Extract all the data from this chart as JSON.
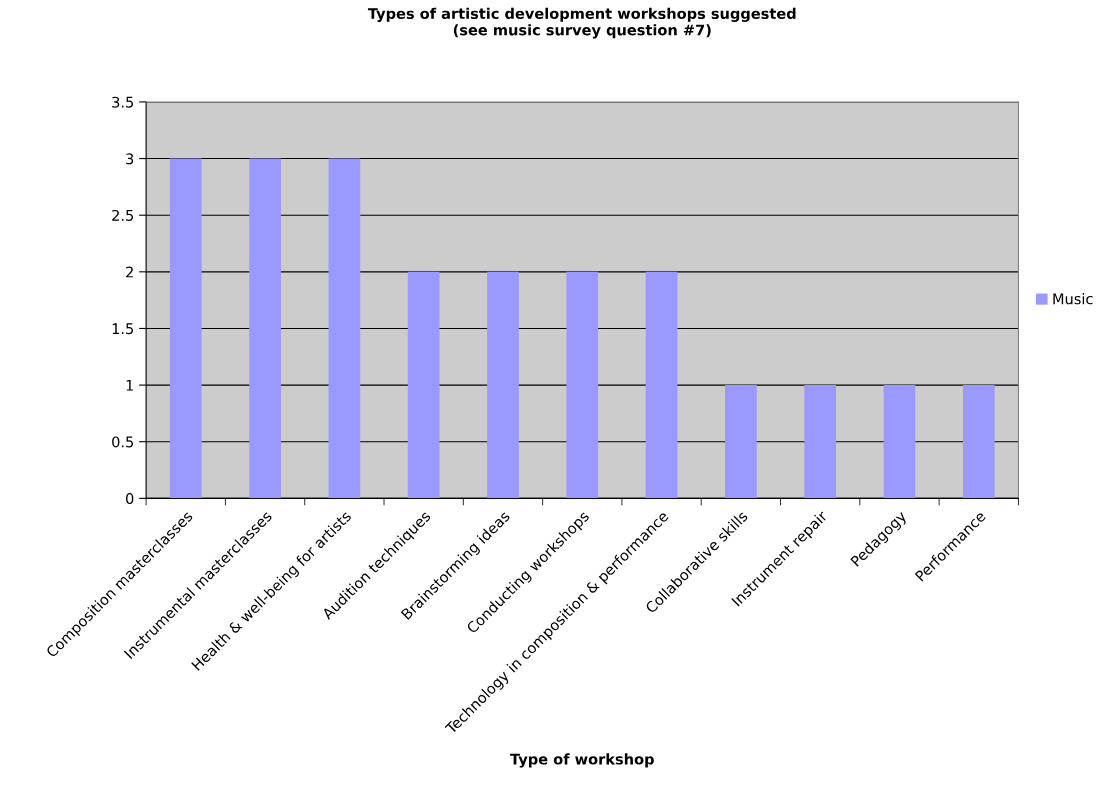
{
  "chart_data": {
    "type": "bar",
    "title": "Types of artistic development workshops suggested\n(see music survey question #7)",
    "xlabel": "Type of workshop",
    "categories": [
      "Composition masterclasses",
      "Instrumental masterclasses",
      "Health & well-being for artists",
      "Audition techniques",
      "Brainstorming ideas",
      "Conducting workshops",
      "Technology in composition & performance",
      "Collaborative skills",
      "Instrument repair",
      "Pedagogy",
      "Performance"
    ],
    "series": [
      {
        "name": "Music",
        "color": "#9999ff",
        "values": [
          3,
          3,
          3,
          2,
          2,
          2,
          2,
          1,
          1,
          1,
          1
        ]
      }
    ],
    "ylim": [
      0,
      3.5
    ],
    "yticks": [
      0,
      0.5,
      1,
      1.5,
      2,
      2.5,
      3,
      3.5
    ],
    "grid": "y",
    "legend": "right"
  }
}
